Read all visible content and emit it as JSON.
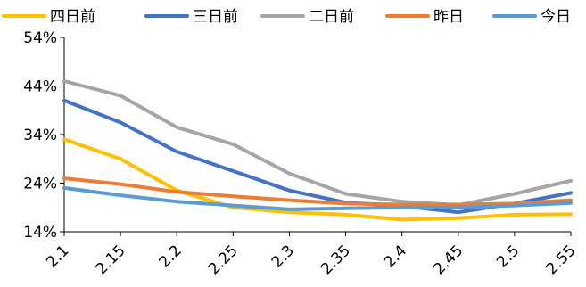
{
  "chart_data": {
    "type": "line",
    "x": [
      "2.1",
      "2.15",
      "2.2",
      "2.25",
      "2.3",
      "2.35",
      "2.4",
      "2.45",
      "2.5",
      "2.55"
    ],
    "ylim": [
      14,
      54
    ],
    "yticks": [
      14,
      24,
      34,
      44,
      54
    ],
    "ytick_labels": [
      "14%",
      "24%",
      "34%",
      "44%",
      "54%"
    ],
    "grid": false,
    "legend_position": "top",
    "series": [
      {
        "name": "四日前",
        "color": "#FFC000",
        "values": [
          33.0,
          29.0,
          22.5,
          19.0,
          18.0,
          17.5,
          16.5,
          16.8,
          17.5,
          17.6
        ]
      },
      {
        "name": "三日前",
        "color": "#4472C4",
        "values": [
          41.0,
          36.5,
          30.5,
          26.5,
          22.5,
          20.0,
          19.3,
          18.0,
          19.8,
          22.0
        ]
      },
      {
        "name": "二日前",
        "color": "#A5A5A5",
        "values": [
          45.0,
          42.0,
          35.5,
          32.0,
          26.0,
          21.8,
          20.2,
          19.5,
          21.8,
          24.5
        ]
      },
      {
        "name": "昨日",
        "color": "#ED7D31",
        "values": [
          25.0,
          23.8,
          22.2,
          21.3,
          20.5,
          19.8,
          19.6,
          19.6,
          19.8,
          20.5
        ]
      },
      {
        "name": "今日",
        "color": "#5B9BD5",
        "values": [
          23.0,
          21.5,
          20.2,
          19.4,
          18.6,
          18.8,
          19.0,
          19.0,
          19.4,
          19.9
        ]
      }
    ]
  }
}
